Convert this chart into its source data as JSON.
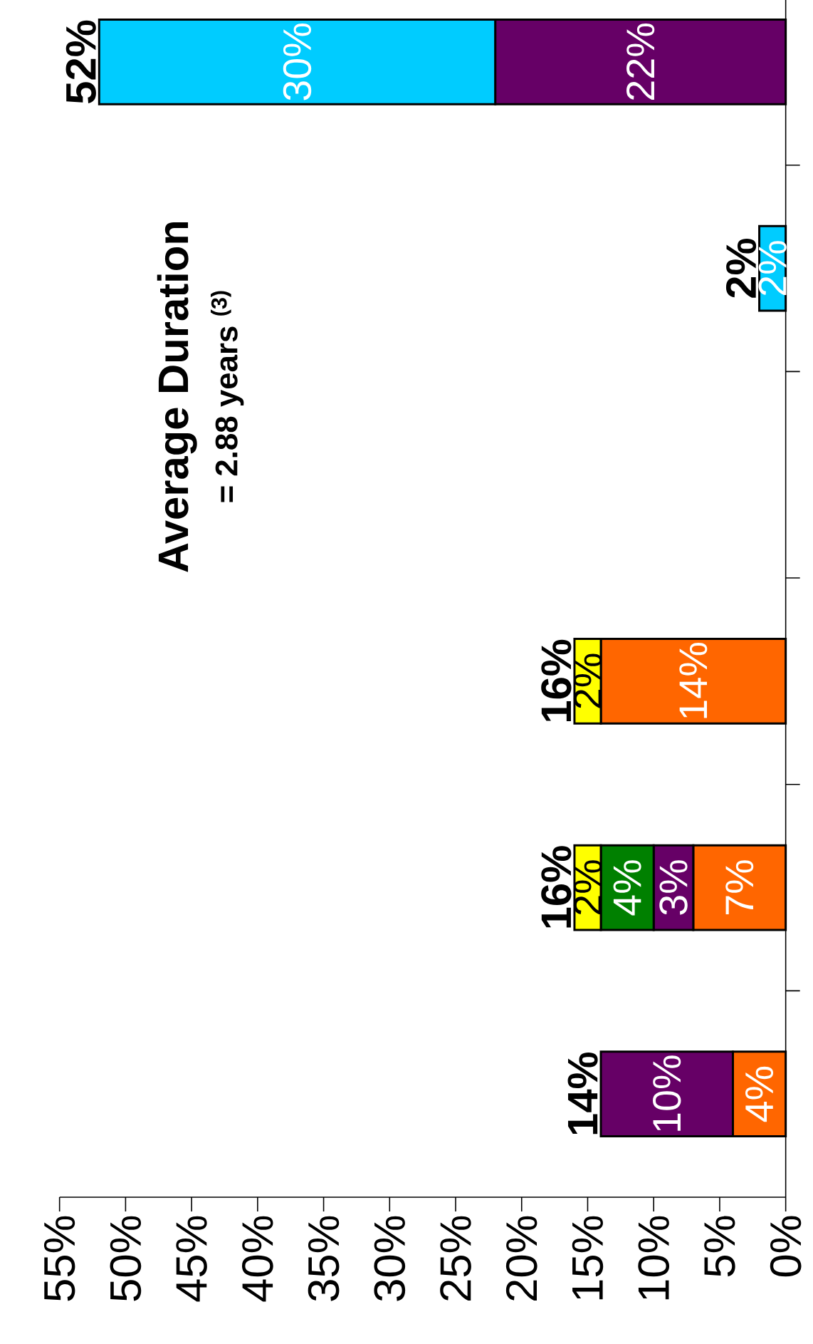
{
  "chart_data": {
    "type": "bar",
    "stacked": true,
    "orientation": "horizontal",
    "categories": [
      null,
      null,
      null,
      null,
      null,
      null
    ],
    "series": [
      {
        "color": "#ff6600",
        "values": [
          null,
          null,
          null,
          14,
          7,
          4
        ],
        "value_labels": [
          null,
          null,
          null,
          "14%",
          "7%",
          "4%"
        ]
      },
      {
        "color": "#660066",
        "values": [
          22,
          null,
          null,
          null,
          3,
          10
        ],
        "value_labels": [
          "22%",
          null,
          null,
          null,
          "3%",
          "10%"
        ]
      },
      {
        "color": "#008000",
        "values": [
          null,
          null,
          null,
          null,
          4,
          null
        ],
        "value_labels": [
          null,
          null,
          null,
          null,
          "4%",
          null
        ]
      },
      {
        "color": "#ffff00",
        "values": [
          null,
          null,
          null,
          2,
          2,
          null
        ],
        "value_labels": [
          null,
          null,
          null,
          "2%",
          "2%",
          null
        ]
      },
      {
        "color": "#00ccff",
        "values": [
          30,
          2,
          null,
          null,
          null,
          null
        ],
        "value_labels": [
          "30%",
          "2%",
          null,
          null,
          null,
          null
        ]
      }
    ],
    "totals": [
      "52%",
      "2%",
      null,
      "16%",
      "16%",
      "14%"
    ],
    "xlim": [
      55,
      0
    ],
    "xticks": [
      {
        "value": 55,
        "label": "55%"
      },
      {
        "value": 50,
        "label": "50%"
      },
      {
        "value": 45,
        "label": "45%"
      },
      {
        "value": 40,
        "label": "40%"
      },
      {
        "value": 35,
        "label": "35%"
      },
      {
        "value": 30,
        "label": "30%"
      },
      {
        "value": 25,
        "label": "25%"
      },
      {
        "value": 20,
        "label": "20%"
      },
      {
        "value": 15,
        "label": "15%"
      },
      {
        "value": 10,
        "label": "10%"
      },
      {
        "value": 5,
        "label": "5%"
      },
      {
        "value": 0,
        "label": "0%"
      }
    ],
    "annotations": [
      "**Average Duration**",
      "**= 2.88 years $^{(3)}$**"
    ]
  }
}
